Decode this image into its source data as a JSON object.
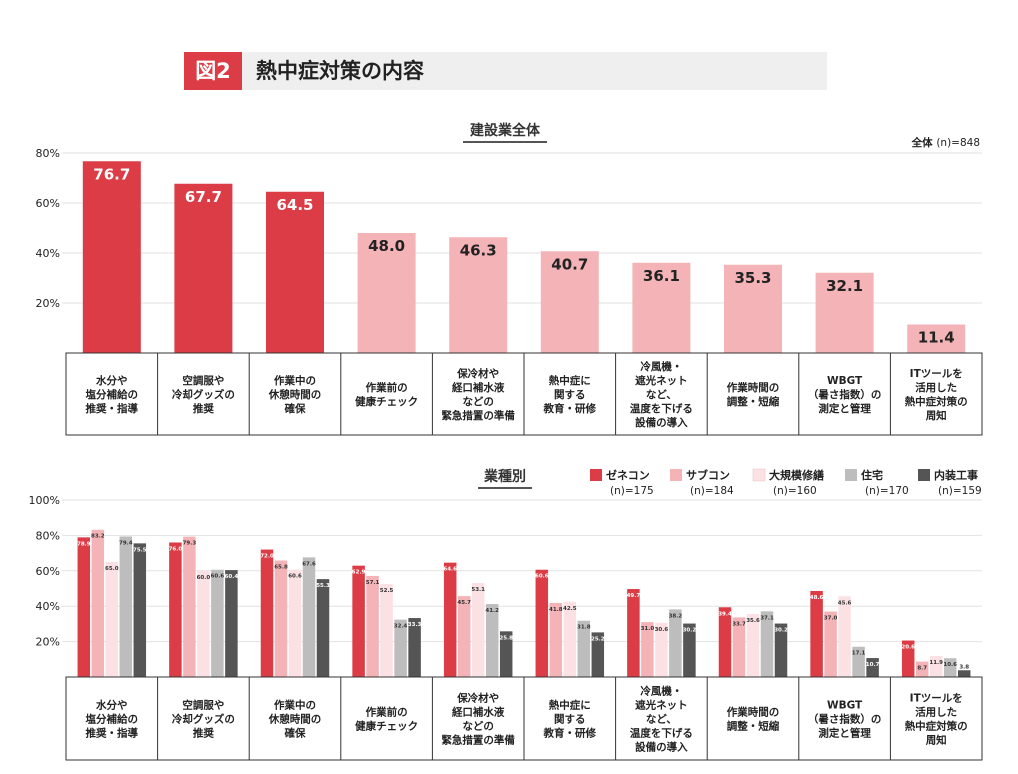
{
  "figure": {
    "label": "図2",
    "title": "熱中症対策の内容"
  },
  "colors": {
    "accent": "#dc3c45",
    "light": "#f4b3b6",
    "pale": "#fbe1e3",
    "gray": "#bdbdbd",
    "dark": "#555555"
  },
  "chart_data": [
    {
      "type": "bar",
      "title": "建設業全体",
      "note_bold": "全体",
      "note": "(n)=848",
      "categories": [
        "水分や\n塩分補給の\n推奨・指導",
        "空調服や\n冷却グッズの\n推奨",
        "作業中の\n休憩時間の\n確保",
        "作業前の\n健康チェック",
        "保冷材や\n経口補水液\nなどの\n緊急措置の準備",
        "熱中症に\n関する\n教育・研修",
        "冷風機・\n遮光ネット\nなど、\n温度を下げる\n設備の導入",
        "作業時間の\n調整・短縮",
        "WBGT\n（暑さ指数）の\n測定と管理",
        "ITツールを\n活用した\n熱中症対策の\n周知"
      ],
      "values": [
        76.7,
        67.7,
        64.5,
        48.0,
        46.3,
        40.7,
        36.1,
        35.3,
        32.1,
        11.4
      ],
      "value_labels": [
        "76.7",
        "67.7",
        "64.5",
        "48.0",
        "46.3",
        "40.7",
        "36.1",
        "35.3",
        "32.1",
        "11.4"
      ],
      "yticks": [
        "80%",
        "60%",
        "40%",
        "20%"
      ],
      "ylim": [
        0,
        80
      ]
    },
    {
      "type": "bar",
      "title": "業種別",
      "categories": [
        "水分や\n塩分補給の\n推奨・指導",
        "空調服や\n冷却グッズの\n推奨",
        "作業中の\n休憩時間の\n確保",
        "作業前の\n健康チェック",
        "保冷材や\n経口補水液\nなどの\n緊急措置の準備",
        "熱中症に\n関する\n教育・研修",
        "冷風機・\n遮光ネット\nなど、\n温度を下げる\n設備の導入",
        "作業時間の\n調整・短縮",
        "WBGT\n（暑さ指数）の\n測定と管理",
        "ITツールを\n活用した\n熱中症対策の\n周知"
      ],
      "series": [
        {
          "name": "ゼネコン",
          "n": "(n)=175",
          "color": "#dc3c45",
          "values": [
            78.9,
            76.0,
            72.0,
            62.9,
            64.6,
            60.6,
            49.7,
            39.4,
            48.6,
            20.6
          ],
          "labels": [
            "78.9",
            "76.0",
            "72.0",
            "62.9",
            "64.6",
            "60.6",
            "49.7",
            "39.4",
            "48.6",
            "20.6"
          ]
        },
        {
          "name": "サブコン",
          "n": "(n)=184",
          "color": "#f4b3b6",
          "values": [
            83.2,
            79.3,
            65.8,
            57.1,
            45.7,
            41.8,
            31.0,
            33.7,
            37.0,
            8.7
          ],
          "labels": [
            "83.2",
            "79.3",
            "65.8",
            "57.1",
            "45.7",
            "41.8",
            "31.0",
            "33.7",
            "37.0",
            "8.7"
          ]
        },
        {
          "name": "大規模修繕",
          "n": "(n)=160",
          "color": "#fbe1e3",
          "values": [
            65.0,
            60.0,
            60.6,
            52.5,
            53.1,
            42.5,
            30.6,
            35.6,
            45.6,
            11.9
          ],
          "labels": [
            "65.0",
            "60.0",
            "60.6",
            "52.5",
            "53.1",
            "42.5",
            "30.6",
            "35.6",
            "45.6",
            "11.9"
          ]
        },
        {
          "name": "住宅",
          "n": "(n)=170",
          "color": "#bdbdbd",
          "values": [
            79.4,
            60.6,
            67.6,
            32.4,
            41.2,
            31.8,
            38.2,
            37.1,
            17.1,
            10.6
          ],
          "labels": [
            "79.4",
            "60.6",
            "67.6",
            "32.4",
            "41.2",
            "31.8",
            "38.2",
            "37.1",
            "17.1",
            "10.6"
          ]
        },
        {
          "name": "内装工事",
          "n": "(n)=159",
          "color": "#555555",
          "values": [
            75.5,
            60.4,
            55.3,
            33.3,
            25.8,
            25.2,
            30.2,
            30.2,
            10.7,
            3.8
          ],
          "labels": [
            "75.5",
            "60.4",
            "55.3",
            "33.3",
            "25.8",
            "25.2",
            "30.2",
            "30.2",
            "10.7",
            "3.8"
          ]
        }
      ],
      "yticks": [
        "100%",
        "80%",
        "60%",
        "40%",
        "20%"
      ],
      "ylim": [
        0,
        100
      ]
    }
  ]
}
